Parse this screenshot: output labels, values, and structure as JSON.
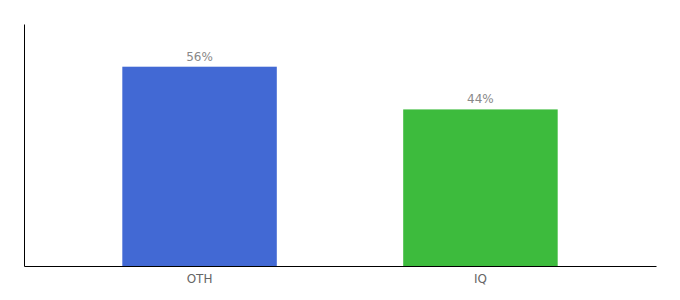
{
  "chart_data": {
    "type": "bar",
    "categories": [
      "OTH",
      "IQ"
    ],
    "values": [
      56,
      44
    ],
    "value_labels": [
      "56%",
      "44%"
    ],
    "colors": [
      "#4269d4",
      "#3dbb3d"
    ],
    "ylim": [
      0,
      68
    ],
    "yticks": [],
    "data_labels": true,
    "tick_labels": "x",
    "grid": false
  }
}
